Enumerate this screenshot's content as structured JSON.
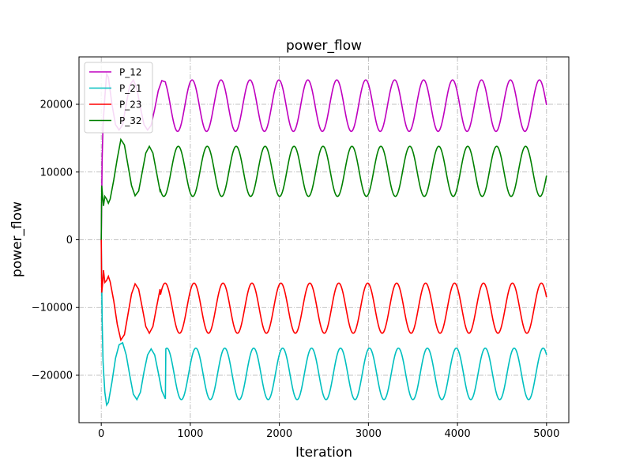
{
  "chart_data": {
    "type": "line",
    "title": "power_flow",
    "xlabel": "Iteration",
    "ylabel": "power_flow",
    "xlim": [
      -250,
      5250
    ],
    "ylim": [
      -27000,
      27000
    ],
    "xticks": [
      0,
      1000,
      2000,
      3000,
      4000,
      5000
    ],
    "xtick_labels": [
      "0",
      "1000",
      "2000",
      "3000",
      "4000",
      "5000"
    ],
    "yticks": [
      -20000,
      -10000,
      0,
      10000,
      20000
    ],
    "ytick_labels": [
      "−20000",
      "−10000",
      "0",
      "10000",
      "20000"
    ],
    "grid": true,
    "legend_position": "top-left",
    "series": [
      {
        "name": "P_12",
        "color": "#bf00bf",
        "points": [
          [
            0,
            0
          ],
          [
            10,
            12000
          ],
          [
            20,
            17000
          ],
          [
            40,
            21000
          ],
          [
            60,
            24500
          ],
          [
            80,
            24000
          ],
          [
            120,
            20000
          ],
          [
            160,
            17000
          ],
          [
            200,
            16200
          ],
          [
            240,
            17000
          ],
          [
            280,
            20000
          ],
          [
            320,
            22800
          ],
          [
            360,
            23600
          ],
          [
            400,
            22300
          ],
          [
            440,
            19500
          ],
          [
            480,
            17000
          ],
          [
            520,
            16200
          ],
          [
            560,
            16900
          ],
          [
            600,
            19300
          ],
          [
            640,
            22000
          ],
          [
            680,
            23500
          ],
          [
            720,
            23300
          ]
        ],
        "period": 325,
        "mean": 19800,
        "amplitude": 3800,
        "phase_peak_x": 370
      },
      {
        "name": "P_21",
        "color": "#00bfbf",
        "points": [
          [
            0,
            0
          ],
          [
            10,
            -12000
          ],
          [
            20,
            -18000
          ],
          [
            40,
            -22500
          ],
          [
            60,
            -24400
          ],
          [
            80,
            -24000
          ],
          [
            120,
            -21000
          ],
          [
            160,
            -17500
          ],
          [
            200,
            -15500
          ],
          [
            240,
            -15200
          ],
          [
            280,
            -17000
          ],
          [
            320,
            -20000
          ],
          [
            360,
            -22800
          ],
          [
            400,
            -23600
          ],
          [
            440,
            -22500
          ],
          [
            480,
            -19500
          ],
          [
            520,
            -17000
          ],
          [
            560,
            -16100
          ],
          [
            600,
            -17000
          ],
          [
            640,
            -19600
          ],
          [
            680,
            -22300
          ],
          [
            720,
            -23500
          ]
        ],
        "period": 325,
        "mean": -19800,
        "amplitude": 3800,
        "phase_peak_x": 412
      },
      {
        "name": "P_23",
        "color": "#ff0000",
        "points": [
          [
            0,
            0
          ],
          [
            5,
            -7800
          ],
          [
            15,
            -6500
          ],
          [
            25,
            -4500
          ],
          [
            40,
            -6300
          ],
          [
            60,
            -6000
          ],
          [
            80,
            -5400
          ],
          [
            100,
            -6200
          ],
          [
            140,
            -9000
          ],
          [
            180,
            -12500
          ],
          [
            220,
            -14800
          ],
          [
            260,
            -14000
          ],
          [
            300,
            -11000
          ],
          [
            340,
            -8000
          ],
          [
            380,
            -6500
          ],
          [
            420,
            -7300
          ],
          [
            460,
            -10000
          ],
          [
            500,
            -12800
          ],
          [
            540,
            -13800
          ],
          [
            580,
            -12800
          ],
          [
            620,
            -10000
          ],
          [
            660,
            -7300
          ]
        ],
        "period": 325,
        "mean": -10100,
        "amplitude": 3700,
        "phase_peak_x": 392
      },
      {
        "name": "P_32",
        "color": "#008000",
        "points": [
          [
            0,
            0
          ],
          [
            5,
            8000
          ],
          [
            15,
            6500
          ],
          [
            25,
            5000
          ],
          [
            40,
            6400
          ],
          [
            60,
            6000
          ],
          [
            80,
            5400
          ],
          [
            100,
            6000
          ],
          [
            140,
            8800
          ],
          [
            180,
            12000
          ],
          [
            220,
            14800
          ],
          [
            260,
            14000
          ],
          [
            300,
            11000
          ],
          [
            340,
            8000
          ],
          [
            380,
            6500
          ],
          [
            420,
            7200
          ],
          [
            460,
            10000
          ],
          [
            500,
            12800
          ],
          [
            540,
            13800
          ],
          [
            580,
            12800
          ],
          [
            620,
            10000
          ],
          [
            660,
            7200
          ]
        ],
        "period": 325,
        "mean": 10100,
        "amplitude": 3700,
        "phase_peak_x": 540
      }
    ]
  }
}
